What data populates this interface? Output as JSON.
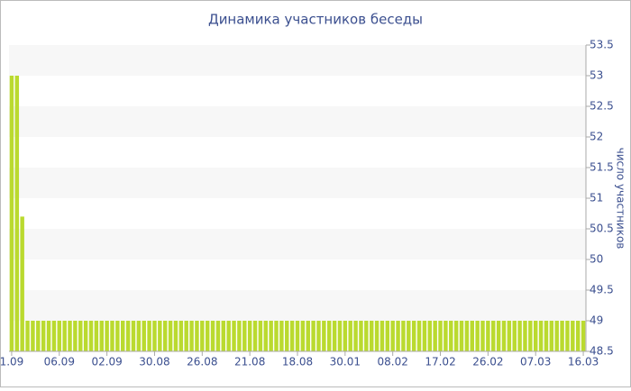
{
  "chart_data": {
    "type": "bar",
    "title": "Динамика участников беседы",
    "y_label": "число участников",
    "categories": [
      "1.09",
      null,
      null,
      null,
      null,
      null,
      null,
      null,
      null,
      "06.09",
      null,
      null,
      null,
      null,
      null,
      null,
      null,
      null,
      "02.09",
      null,
      null,
      null,
      null,
      null,
      null,
      null,
      null,
      "30.08",
      null,
      null,
      null,
      null,
      null,
      null,
      null,
      null,
      "26.08",
      null,
      null,
      null,
      null,
      null,
      null,
      null,
      null,
      "21.08",
      null,
      null,
      null,
      null,
      null,
      null,
      null,
      null,
      "18.08",
      null,
      null,
      null,
      null,
      null,
      null,
      null,
      null,
      "30.01",
      null,
      null,
      null,
      null,
      null,
      null,
      null,
      null,
      "08.02",
      null,
      null,
      null,
      null,
      null,
      null,
      null,
      null,
      "17.02",
      null,
      null,
      null,
      null,
      null,
      null,
      null,
      null,
      "26.02",
      null,
      null,
      null,
      null,
      null,
      null,
      null,
      null,
      "07.03",
      null,
      null,
      null,
      null,
      null,
      null,
      null,
      null,
      "16.03"
    ],
    "values": [
      53,
      53,
      50.7,
      49,
      49,
      49,
      49,
      49,
      49,
      49,
      49,
      49,
      49,
      49,
      49,
      49,
      49,
      49,
      49,
      49,
      49,
      49,
      49,
      49,
      49,
      49,
      49,
      49,
      49,
      49,
      49,
      49,
      49,
      49,
      49,
      49,
      49,
      49,
      49,
      49,
      49,
      49,
      49,
      49,
      49,
      49,
      49,
      49,
      49,
      49,
      49,
      49,
      49,
      49,
      49,
      49,
      49,
      49,
      49,
      49,
      49,
      49,
      49,
      49,
      49,
      49,
      49,
      49,
      49,
      49,
      49,
      49,
      49,
      49,
      49,
      49,
      49,
      49,
      49,
      49,
      49,
      49,
      49,
      49,
      49,
      49,
      49,
      49,
      49,
      49,
      49,
      49,
      49,
      49,
      49,
      49,
      49,
      49,
      49,
      49,
      49,
      49,
      49,
      49,
      49,
      49,
      49,
      49,
      49
    ],
    "color": "#bada2f",
    "ylim": [
      48.5,
      53.5
    ],
    "yticks": [
      48.5,
      49,
      49.5,
      50,
      50.5,
      51,
      51.5,
      52,
      52.5,
      53,
      53.5
    ],
    "grid": true
  }
}
